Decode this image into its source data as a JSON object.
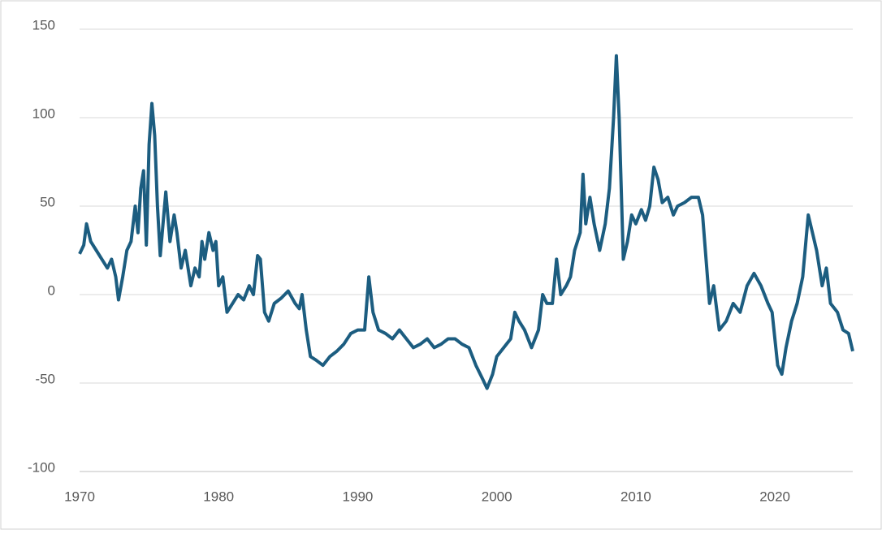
{
  "chart_data": {
    "type": "line",
    "color": "#1c5d80",
    "x": [
      1970,
      1970.3,
      1970.5,
      1970.8,
      1971.2,
      1971.6,
      1972,
      1972.3,
      1972.6,
      1972.8,
      1973.1,
      1973.4,
      1973.7,
      1974,
      1974.2,
      1974.4,
      1974.6,
      1974.8,
      1975,
      1975.2,
      1975.4,
      1975.6,
      1975.8,
      1976,
      1976.2,
      1976.5,
      1976.8,
      1977,
      1977.3,
      1977.6,
      1978,
      1978.3,
      1978.6,
      1978.8,
      1979,
      1979.3,
      1979.6,
      1979.8,
      1980,
      1980.3,
      1980.6,
      1981,
      1981.4,
      1981.8,
      1982.2,
      1982.5,
      1982.8,
      1983,
      1983.3,
      1983.6,
      1984,
      1984.5,
      1985,
      1985.5,
      1985.8,
      1986,
      1986.3,
      1986.6,
      1987,
      1987.5,
      1988,
      1988.5,
      1989,
      1989.5,
      1990,
      1990.5,
      1990.8,
      1991.1,
      1991.5,
      1992,
      1992.5,
      1993,
      1993.5,
      1994,
      1994.5,
      1995,
      1995.5,
      1996,
      1996.5,
      1997,
      1997.5,
      1998,
      1998.5,
      1999,
      1999.3,
      1999.7,
      2000,
      2000.5,
      2001,
      2001.3,
      2001.6,
      2002,
      2002.5,
      2003,
      2003.3,
      2003.6,
      2004,
      2004.3,
      2004.6,
      2005,
      2005.3,
      2005.6,
      2006,
      2006.2,
      2006.4,
      2006.7,
      2007,
      2007.4,
      2007.8,
      2008.1,
      2008.4,
      2008.6,
      2008.8,
      2009.1,
      2009.4,
      2009.7,
      2010,
      2010.4,
      2010.7,
      2011,
      2011.3,
      2011.6,
      2011.9,
      2012.3,
      2012.7,
      2013,
      2013.5,
      2014,
      2014.5,
      2014.8,
      2015,
      2015.3,
      2015.6,
      2016,
      2016.5,
      2017,
      2017.5,
      2018,
      2018.5,
      2019,
      2019.5,
      2019.8,
      2020.2,
      2020.5,
      2020.8,
      2021.2,
      2021.6,
      2022,
      2022.4,
      2022.7,
      2023,
      2023.4,
      2023.7,
      2024,
      2024.5,
      2024.9,
      2025.3,
      2025.6
    ],
    "values": [
      23,
      28,
      40,
      30,
      25,
      20,
      15,
      20,
      10,
      -3,
      10,
      25,
      30,
      50,
      35,
      60,
      70,
      28,
      85,
      108,
      90,
      50,
      22,
      40,
      58,
      30,
      45,
      35,
      15,
      25,
      5,
      15,
      10,
      30,
      20,
      35,
      25,
      30,
      5,
      10,
      -10,
      -5,
      0,
      -3,
      5,
      0,
      22,
      20,
      -10,
      -15,
      -5,
      -2,
      2,
      -5,
      -8,
      0,
      -20,
      -35,
      -37,
      -40,
      -35,
      -32,
      -28,
      -22,
      -20,
      -20,
      10,
      -10,
      -20,
      -22,
      -25,
      -20,
      -25,
      -30,
      -28,
      -25,
      -30,
      -28,
      -25,
      -25,
      -28,
      -30,
      -40,
      -48,
      -53,
      -45,
      -35,
      -30,
      -25,
      -10,
      -15,
      -20,
      -30,
      -20,
      0,
      -5,
      -5,
      20,
      0,
      5,
      10,
      25,
      35,
      68,
      40,
      55,
      40,
      25,
      40,
      60,
      100,
      135,
      100,
      20,
      30,
      45,
      40,
      48,
      42,
      50,
      72,
      65,
      52,
      55,
      45,
      50,
      52,
      55,
      55,
      45,
      25,
      -5,
      5,
      -20,
      -15,
      -5,
      -10,
      5,
      12,
      5,
      -5,
      -10,
      -40,
      -45,
      -30,
      -15,
      -5,
      10,
      45,
      35,
      25,
      5,
      15,
      -5,
      -10,
      -20,
      -22,
      -32
    ],
    "xlim": [
      1970,
      2025.6
    ],
    "xticks": [
      1970,
      1980,
      1990,
      2000,
      2010,
      2020
    ],
    "ylim": [
      -100,
      150
    ],
    "yticks": [
      -100,
      -50,
      0,
      50,
      100,
      150
    ],
    "grid": true
  }
}
